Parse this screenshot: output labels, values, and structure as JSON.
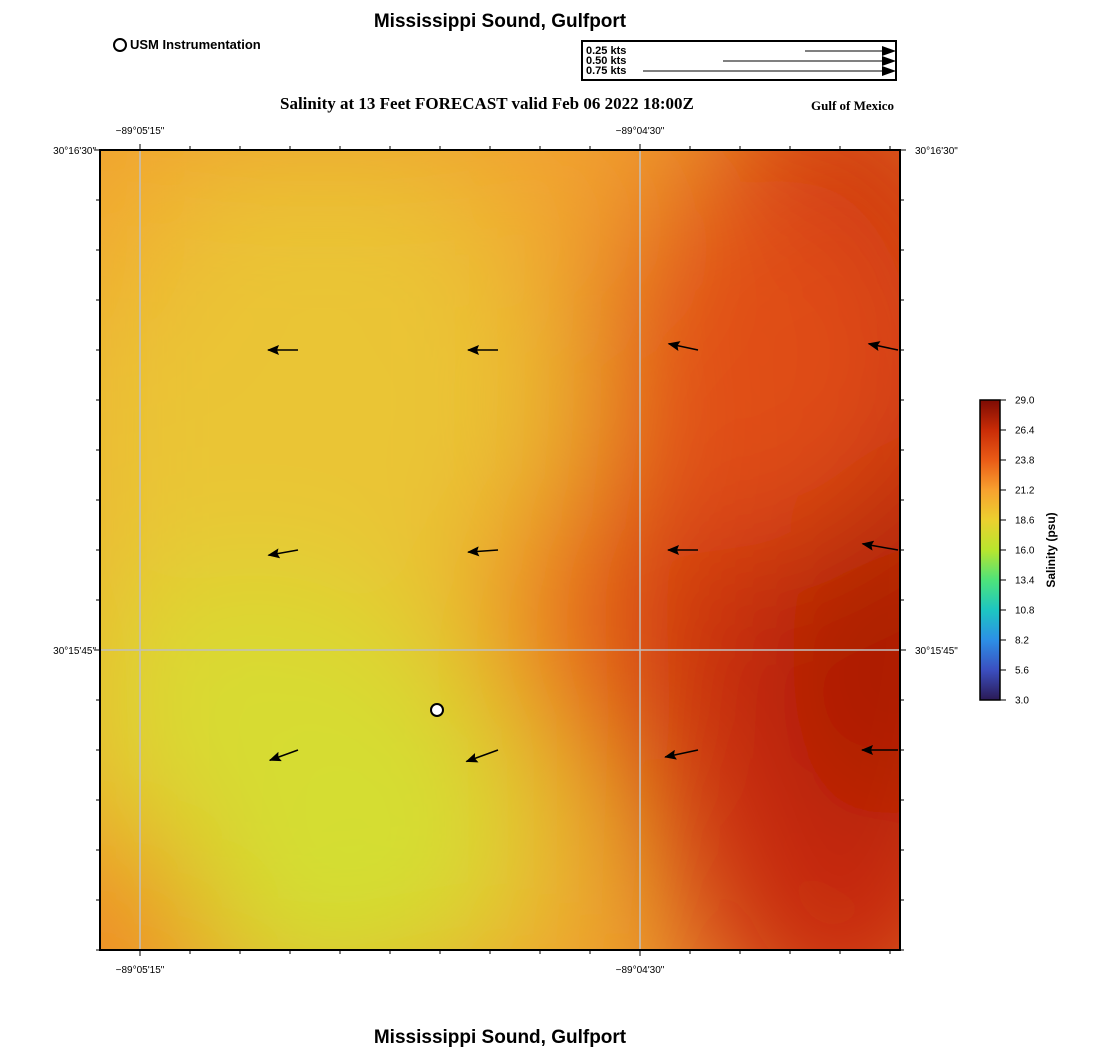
{
  "header": {
    "title": "Mississippi Sound, Gulfport",
    "subtitle": "Salinity at 13 Feet FORECAST valid Feb 06 2022 18:00Z",
    "region_label": "Gulf of Mexico",
    "footer_title": "Mississippi Sound, Gulfport"
  },
  "legend": {
    "instrument_label": "USM Instrumentation",
    "speed_scale": [
      {
        "label": "0.25 kts",
        "speed": 0.25
      },
      {
        "label": "0.50 kts",
        "speed": 0.5
      },
      {
        "label": "0.75 kts",
        "speed": 0.75
      }
    ]
  },
  "map": {
    "top_lon_labels": [
      "−89°05'15\"",
      "−89°04'30\""
    ],
    "bottom_lon_labels": [
      "−89°05'15\"",
      "−89°04'30\""
    ],
    "left_lat_labels": [
      "30°16'30\"",
      "30°15'45\""
    ],
    "right_lat_labels": [
      "30°16'30\"",
      "30°15'45\""
    ],
    "gridline_color": "#bfbfbf",
    "station_marker": "USM Instrumentation",
    "current_vectors": [
      {
        "row": 1,
        "col": 1,
        "dir_deg": 180,
        "speed": 0.25
      },
      {
        "row": 1,
        "col": 2,
        "dir_deg": 180,
        "speed": 0.25
      },
      {
        "row": 1,
        "col": 3,
        "dir_deg": 168,
        "speed": 0.25
      },
      {
        "row": 1,
        "col": 4,
        "dir_deg": 168,
        "speed": 0.25
      },
      {
        "row": 2,
        "col": 1,
        "dir_deg": 190,
        "speed": 0.25
      },
      {
        "row": 2,
        "col": 2,
        "dir_deg": 184,
        "speed": 0.25
      },
      {
        "row": 2,
        "col": 3,
        "dir_deg": 180,
        "speed": 0.25
      },
      {
        "row": 2,
        "col": 4,
        "dir_deg": 170,
        "speed": 0.3
      },
      {
        "row": 3,
        "col": 1,
        "dir_deg": 200,
        "speed": 0.25
      },
      {
        "row": 3,
        "col": 2,
        "dir_deg": 200,
        "speed": 0.28
      },
      {
        "row": 3,
        "col": 3,
        "dir_deg": 192,
        "speed": 0.28
      },
      {
        "row": 3,
        "col": 4,
        "dir_deg": 180,
        "speed": 0.3
      }
    ]
  },
  "colorbar": {
    "title": "Salinity (psu)",
    "ticks": [
      "29.0",
      "26.4",
      "23.8",
      "21.2",
      "18.6",
      "16.0",
      "13.4",
      "10.8",
      "8.2",
      "5.6",
      "3.0"
    ],
    "min": 3.0,
    "max": 29.0,
    "colors": [
      "#2b1a55",
      "#3b4fc0",
      "#2c8fe6",
      "#1dc6c2",
      "#4ee37a",
      "#b8e52e",
      "#ecd02f",
      "#f7a12f",
      "#ea5b16",
      "#c92c07",
      "#7d0b03"
    ]
  }
}
